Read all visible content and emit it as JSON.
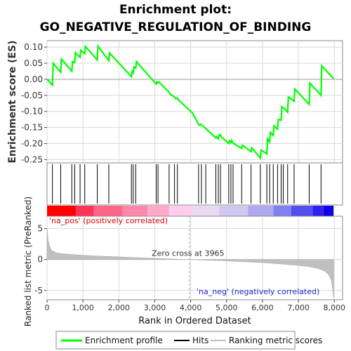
{
  "title_line1": "Enrichment plot:",
  "title_line2": "GO_NEGATIVE_REGULATION_OF_BINDING",
  "chart_data": [
    {
      "type": "line",
      "panel": "enrichment",
      "ylabel": "Enrichment score (ES)",
      "ylim": [
        -0.26,
        0.12
      ],
      "yticks": [
        "0.10",
        "0.05",
        "0.00",
        "-0.05",
        "-0.10",
        "-0.15",
        "-0.20",
        "-0.25"
      ],
      "ytick_values": [
        0.1,
        0.05,
        0.0,
        -0.05,
        -0.1,
        -0.15,
        -0.2,
        -0.25
      ],
      "grid": true,
      "color": "#00ff00",
      "x": [
        0,
        150,
        170,
        380,
        400,
        690,
        710,
        770,
        790,
        920,
        940,
        1050,
        1070,
        1400,
        1420,
        1720,
        1740,
        2350,
        2370,
        2400,
        2420,
        2470,
        2490,
        3040,
        3060,
        3090,
        3110,
        3400,
        3430,
        3550,
        3570,
        3630,
        3650,
        4050,
        4220,
        4240,
        4300,
        4320,
        4420,
        4440,
        4700,
        4720,
        4770,
        4790,
        4830,
        4850,
        5060,
        5080,
        5120,
        5140,
        5180,
        5200,
        5420,
        5440,
        5680,
        5700,
        5940,
        5960,
        6120,
        6140,
        6200,
        6220,
        6300,
        6320,
        6420,
        6440,
        6520,
        6540,
        6580,
        6600,
        6700,
        6720,
        6880,
        6900,
        7300,
        7320,
        7630,
        7650,
        7980
      ],
      "y": [
        0.0,
        -0.018,
        0.05,
        0.022,
        0.063,
        0.025,
        0.055,
        0.052,
        0.083,
        0.068,
        0.09,
        0.08,
        0.102,
        0.06,
        0.103,
        0.058,
        0.082,
        0.008,
        0.025,
        0.02,
        0.038,
        0.035,
        0.055,
        -0.015,
        -0.008,
        -0.01,
        -0.008,
        -0.04,
        -0.047,
        -0.055,
        -0.06,
        -0.058,
        -0.063,
        -0.105,
        -0.14,
        -0.143,
        -0.14,
        -0.143,
        -0.153,
        -0.155,
        -0.182,
        -0.178,
        -0.185,
        -0.175,
        -0.172,
        -0.178,
        -0.2,
        -0.192,
        -0.197,
        -0.19,
        -0.197,
        -0.2,
        -0.215,
        -0.205,
        -0.225,
        -0.213,
        -0.245,
        -0.22,
        -0.232,
        -0.185,
        -0.195,
        -0.165,
        -0.175,
        -0.145,
        -0.155,
        -0.125,
        -0.127,
        -0.085,
        -0.09,
        -0.09,
        -0.102,
        -0.055,
        -0.068,
        -0.03,
        -0.078,
        -0.012,
        -0.05,
        0.042,
        0.002
      ]
    },
    {
      "type": "hits",
      "panel": "hits",
      "positions": [
        150,
        380,
        690,
        770,
        920,
        1050,
        1400,
        1720,
        2350,
        2400,
        2470,
        3040,
        3090,
        3400,
        3550,
        3630,
        4220,
        4300,
        4420,
        4700,
        4770,
        4830,
        5060,
        5120,
        5180,
        5420,
        5680,
        5940,
        6120,
        6200,
        6300,
        6420,
        6520,
        6580,
        6700,
        6880,
        7300,
        7630
      ]
    },
    {
      "type": "area",
      "panel": "ranked-metric",
      "xlabel": "Rank in Ordered Dataset",
      "ylabel": "Ranked list metric (PreRanked)",
      "ylim": [
        -6.5,
        7
      ],
      "yticks": [
        "5",
        "0",
        "-5"
      ],
      "ytick_values": [
        5,
        0,
        -5
      ],
      "xlim": [
        0,
        8230
      ],
      "xticks": [
        "0",
        "1,000",
        "2,000",
        "3,000",
        "4,000",
        "5,000",
        "6,000",
        "7,000",
        "8,000"
      ],
      "xtick_values": [
        0,
        1000,
        2000,
        3000,
        4000,
        5000,
        6000,
        7000,
        8000
      ],
      "x": [
        0,
        10,
        30,
        60,
        100,
        150,
        250,
        400,
        700,
        1000,
        1500,
        2000,
        2500,
        3000,
        3500,
        3965,
        4500,
        5000,
        5500,
        6000,
        6500,
        7000,
        7300,
        7550,
        7750,
        7850,
        7920,
        7960,
        7980
      ],
      "y": [
        5.2,
        4.2,
        3.2,
        2.3,
        1.7,
        1.4,
        1.1,
        0.95,
        0.8,
        0.68,
        0.55,
        0.43,
        0.3,
        0.18,
        0.07,
        0.0,
        -0.1,
        -0.22,
        -0.35,
        -0.5,
        -0.7,
        -0.95,
        -1.15,
        -1.45,
        -1.9,
        -2.5,
        -3.4,
        -5.0,
        -6.2
      ],
      "color": "#c0c0c0",
      "zero_cross_label": "Zero cross at 3965",
      "zero_cross": 3965,
      "pos_label": "'na_pos' (positively correlated)",
      "neg_label": "'na_neg' (negatively correlated)",
      "colorbar_colors": [
        "#ff0000",
        "#ff3355",
        "#ff6688",
        "#ff88aa",
        "#ffaacc",
        "#ffccee",
        "#e8d8f0",
        "#d0c8f0",
        "#b0a8f0",
        "#8080f0",
        "#5050f0",
        "#3020f0",
        "#1000e8"
      ],
      "colorbar_stops": [
        0,
        800,
        1300,
        2100,
        2800,
        3400,
        4000,
        4800,
        5600,
        6300,
        6800,
        7400,
        7700,
        7980
      ]
    }
  ],
  "legend": {
    "placement": "bottom",
    "items": [
      {
        "label": "Enrichment profile",
        "color": "#00ff00",
        "style": "line"
      },
      {
        "label": "Hits",
        "color": "#000000",
        "style": "thin-line"
      },
      {
        "label": "Ranking metric scores",
        "color": "#c0c0c0",
        "style": "line"
      }
    ]
  }
}
